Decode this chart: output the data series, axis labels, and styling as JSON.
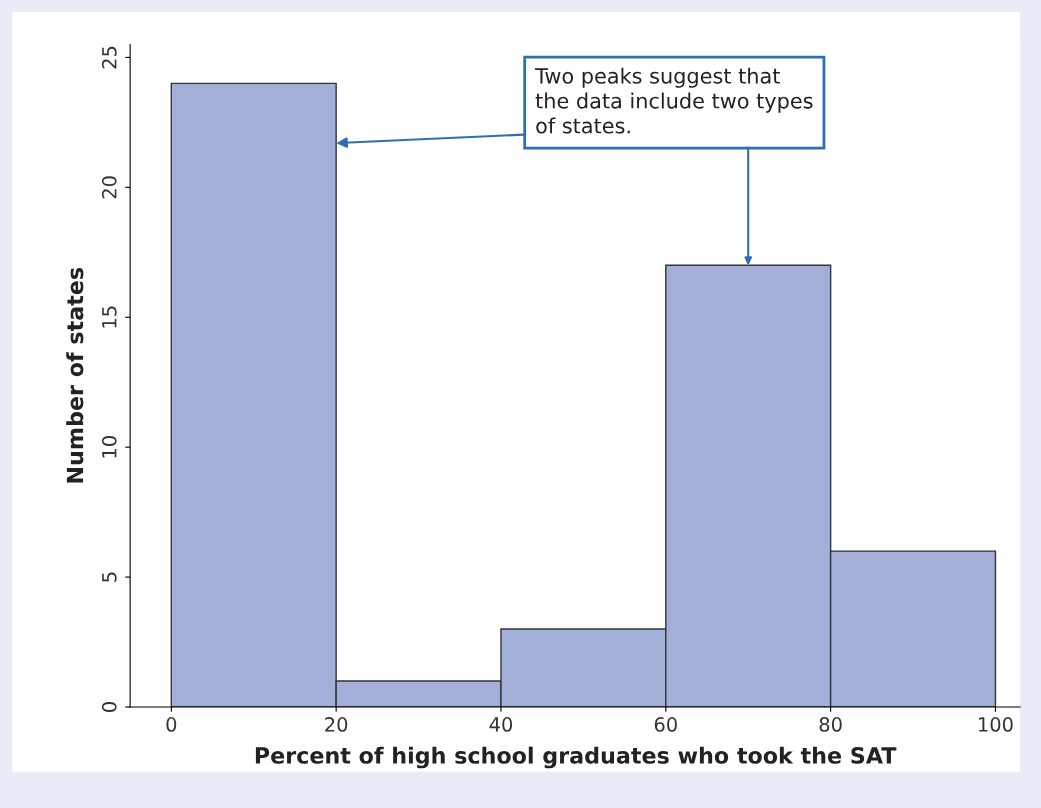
{
  "chart_data": {
    "type": "histogram",
    "xlabel": "Percent of high school graduates who took the SAT",
    "ylabel": "Number of states",
    "bins": [
      0,
      20,
      40,
      60,
      80,
      100
    ],
    "values": [
      24,
      1,
      3,
      17,
      6
    ],
    "color": "#a3aed9",
    "xlim": [
      -5,
      103
    ],
    "ylim": [
      0,
      25.5
    ],
    "xticks": [
      0,
      20,
      40,
      60,
      80,
      100
    ],
    "yticks": [
      0,
      5,
      10,
      15,
      20,
      25
    ],
    "grid": false,
    "annotations": [
      {
        "text": "Two peaks suggest that\nthe data include two types\nof states.",
        "x": 20,
        "y": 21.7
      }
    ]
  }
}
